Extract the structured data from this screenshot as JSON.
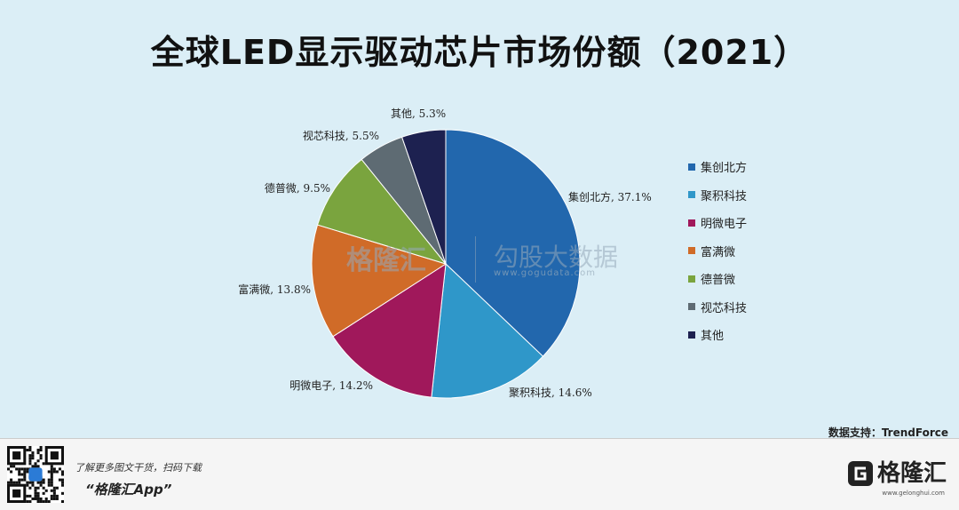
{
  "title": "全球LED显示驱动芯片市场份额（2021）",
  "source": "数据支持：TrendForce",
  "watermark": {
    "brand": "格隆汇",
    "name": "勾股大数据",
    "url": "www.gogudata.com"
  },
  "footer": {
    "promo_line1": "了解更多图文干货，扫码下载",
    "promo_line2": "“格隆汇App”",
    "brand_name": "格隆汇",
    "brand_url": "www.gelonghui.com"
  },
  "chart_data": {
    "type": "pie",
    "title": "全球LED显示驱动芯片市场份额（2021）",
    "start_angle_deg": 0,
    "direction": "clockwise",
    "legend_position": "right",
    "slices": [
      {
        "name": "集创北方",
        "value": 37.1,
        "label": "集创北方, 37.1%",
        "color": "#2267ad"
      },
      {
        "name": "聚积科技",
        "value": 14.6,
        "label": "聚积科技, 14.6%",
        "color": "#2f97c9"
      },
      {
        "name": "明微电子",
        "value": 14.2,
        "label": "明微电子, 14.2%",
        "color": "#a0185b"
      },
      {
        "name": "富满微",
        "value": 13.8,
        "label": "富满微, 13.8%",
        "color": "#d06b28"
      },
      {
        "name": "德普微",
        "value": 9.5,
        "label": "德普微, 9.5%",
        "color": "#7aa43e"
      },
      {
        "name": "视芯科技",
        "value": 5.5,
        "label": "视芯科技, 5.5%",
        "color": "#5e6b73"
      },
      {
        "name": "其他",
        "value": 5.3,
        "label": "其他, 5.3%",
        "color": "#1d2150"
      }
    ]
  }
}
